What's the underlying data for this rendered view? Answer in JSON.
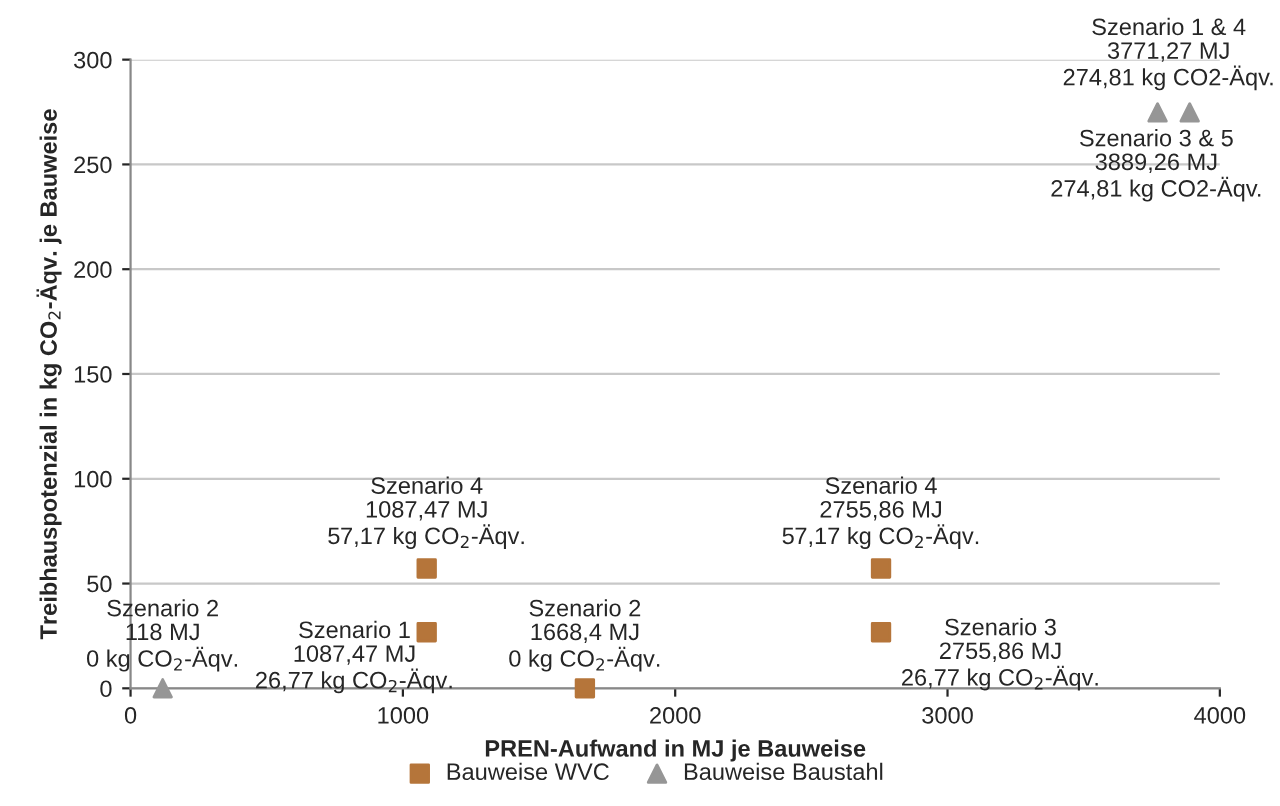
{
  "chart_data": {
    "type": "scatter",
    "xlabel": "PREN-Aufwand in MJ je Bauweise",
    "ylabel": "Treibhauspotenzial in kg CO$_{2}$-Äqv. je Bauweise",
    "xlim": [
      0,
      4000
    ],
    "xticks": [
      0,
      1000,
      2000,
      3000,
      4000
    ],
    "ylim": [
      0,
      300
    ],
    "yticks": [
      0,
      50,
      100,
      150,
      200,
      250,
      300
    ],
    "grid": "y",
    "legend": "bottom",
    "series": [
      {
        "name": "Bauweise WVC",
        "color": "#b5753a",
        "marker": "square",
        "x": [
          1087.47,
          1087.47,
          1668.4,
          2755.86,
          2755.86
        ],
        "values": [
          26.77,
          57.17,
          0,
          57.17,
          26.77
        ]
      },
      {
        "name": "Bauweise Baustahl",
        "color": "#969696",
        "marker": "triangle",
        "x": [
          118,
          3771.27,
          3889.26
        ],
        "values": [
          0,
          274.81,
          274.81
        ]
      }
    ],
    "annotations": [
      {
        "text": "Szenario 2\n118 MJ\n0 kg CO$_{2}$-Äqv.",
        "x": 118,
        "y": 0
      },
      {
        "text": "Szenario 1\n1087,47 MJ\n26,77 kg CO$_{2}$-Äqv.",
        "x": 1087.47,
        "y": 26.77
      },
      {
        "text": "Szenario 4\n1087,47 MJ\n57,17 kg CO$_{2}$-Äqv.",
        "x": 1087.47,
        "y": 57.17
      },
      {
        "text": "Szenario 2\n1668,4 MJ\n0 kg CO$_{2}$-Äqv.",
        "x": 1668.4,
        "y": 0
      },
      {
        "text": "Szenario 4\n2755,86 MJ\n57,17 kg CO$_{2}$-Äqv.",
        "x": 2755.86,
        "y": 57.17
      },
      {
        "text": "Szenario 3\n2755,86 MJ\n26,77 kg CO$_{2}$-Äqv.",
        "x": 2755.86,
        "y": 26.77
      },
      {
        "text": "Szenario 1 & 4\n3771,27 MJ\n274,81 kg CO2-Äqv.",
        "x": 3771.27,
        "y": 274.81
      },
      {
        "text": "Szenario 3 & 5\n3889,26 MJ\n274,81 kg CO2-Äqv.",
        "x": 3889.26,
        "y": 274.81
      }
    ]
  }
}
